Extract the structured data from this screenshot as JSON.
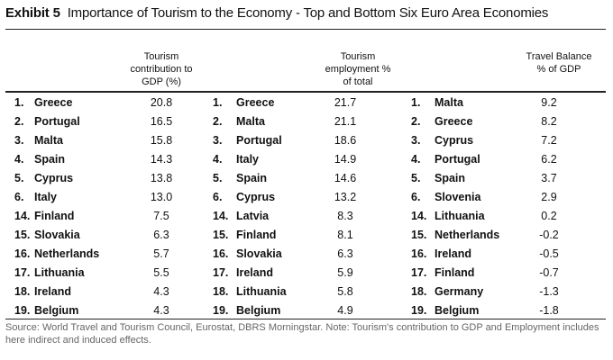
{
  "chart_data": {
    "type": "table",
    "exhibit_label": "Exhibit 5",
    "title": "Importance of Tourism to the Economy - Top and Bottom Six Euro Area Economies",
    "columns": [
      {
        "header": [
          "Tourism",
          "contribution to",
          "GDP (%)"
        ]
      },
      {
        "header": [
          "Tourism",
          "employment %",
          "of total"
        ]
      },
      {
        "header": [
          "Travel Balance",
          "% of GDP"
        ]
      }
    ],
    "rows": [
      [
        [
          "1.",
          "Greece",
          "20.8"
        ],
        [
          "1.",
          "Greece",
          "21.7"
        ],
        [
          "1.",
          "Malta",
          "9.2"
        ]
      ],
      [
        [
          "2.",
          "Portugal",
          "16.5"
        ],
        [
          "2.",
          "Malta",
          "21.1"
        ],
        [
          "2.",
          "Greece",
          "8.2"
        ]
      ],
      [
        [
          "3.",
          "Malta",
          "15.8"
        ],
        [
          "3.",
          "Portugal",
          "18.6"
        ],
        [
          "3.",
          "Cyprus",
          "7.2"
        ]
      ],
      [
        [
          "4.",
          "Spain",
          "14.3"
        ],
        [
          "4.",
          "Italy",
          "14.9"
        ],
        [
          "4.",
          "Portugal",
          "6.2"
        ]
      ],
      [
        [
          "5.",
          "Cyprus",
          "13.8"
        ],
        [
          "5.",
          "Spain",
          "14.6"
        ],
        [
          "5.",
          "Spain",
          "3.7"
        ]
      ],
      [
        [
          "6.",
          "Italy",
          "13.0"
        ],
        [
          "6.",
          "Cyprus",
          "13.2"
        ],
        [
          "6.",
          "Slovenia",
          "2.9"
        ]
      ],
      [
        [
          "14.",
          "Finland",
          "7.5"
        ],
        [
          "14.",
          "Latvia",
          "8.3"
        ],
        [
          "14.",
          "Lithuania",
          "0.2"
        ]
      ],
      [
        [
          "15.",
          "Slovakia",
          "6.3"
        ],
        [
          "15.",
          "Finland",
          "8.1"
        ],
        [
          "15.",
          "Netherlands",
          "-0.2"
        ]
      ],
      [
        [
          "16.",
          "Netherlands",
          "5.7"
        ],
        [
          "16.",
          "Slovakia",
          "6.3"
        ],
        [
          "16.",
          "Ireland",
          "-0.5"
        ]
      ],
      [
        [
          "17.",
          "Lithuania",
          "5.5"
        ],
        [
          "17.",
          "Ireland",
          "5.9"
        ],
        [
          "17.",
          "Finland",
          "-0.7"
        ]
      ],
      [
        [
          "18.",
          "Ireland",
          "4.3"
        ],
        [
          "18.",
          "Lithuania",
          "5.8"
        ],
        [
          "18.",
          "Germany",
          "-1.3"
        ]
      ],
      [
        [
          "19.",
          "Belgium",
          "4.3"
        ],
        [
          "19.",
          "Belgium",
          "4.9"
        ],
        [
          "19.",
          "Belgium",
          "-1.8"
        ]
      ]
    ],
    "source": "Source: World Travel and Tourism Council, Eurostat, DBRS Morningstar. Note: Tourism's contribution to GDP and Employment includes here indirect and induced effects."
  }
}
